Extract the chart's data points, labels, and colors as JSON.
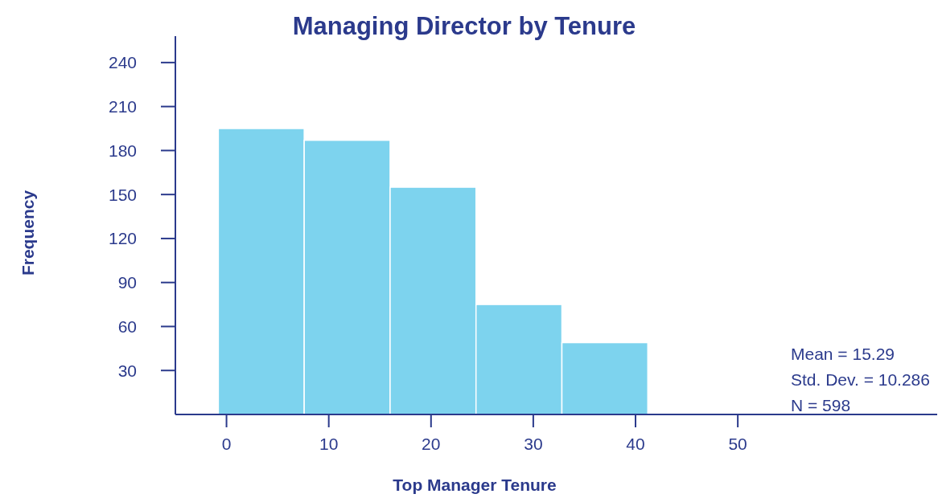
{
  "chart_data": {
    "type": "histogram",
    "title": "Managing Director by Tenure",
    "xlabel": "Top Manager Tenure",
    "ylabel": "Frequency",
    "bins": [
      -0.8,
      7.6,
      16,
      24.4,
      32.8,
      41.2
    ],
    "values": [
      195,
      187,
      155,
      75,
      49
    ],
    "color": "#7dd3ee",
    "xlim": [
      -5,
      69.5
    ],
    "xticks": [
      0,
      10,
      20,
      30,
      40,
      50
    ],
    "ylim": [
      0,
      258
    ],
    "yticks": [
      30,
      60,
      90,
      120,
      150,
      180,
      210,
      240
    ],
    "grid": false,
    "annotations": [
      "Mean = 15.29",
      "Std. Dev. = 10.286",
      "N = 598"
    ]
  }
}
